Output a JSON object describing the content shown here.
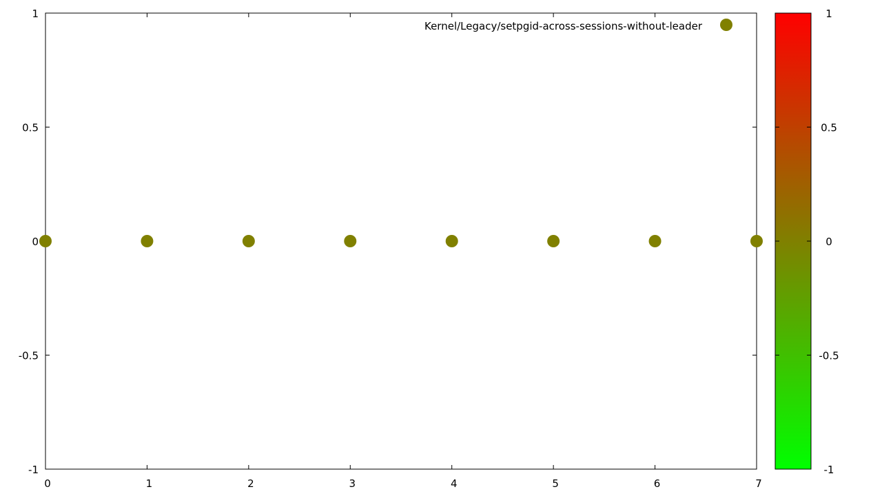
{
  "chart_data": {
    "type": "scatter",
    "title": "",
    "xlabel": "",
    "ylabel": "",
    "xlim": [
      0,
      7
    ],
    "ylim": [
      -1,
      1
    ],
    "x_ticks": [
      "0",
      "1",
      "2",
      "3",
      "4",
      "5",
      "6",
      "7"
    ],
    "y_ticks": [
      "1",
      "0.5",
      "0",
      "-0.5",
      "-1"
    ],
    "grid": false,
    "legend_position": "top-right",
    "series": [
      {
        "name": "Kernel/Legacy/setpgid-across-sessions-without-leader",
        "color": "#808000",
        "x": [
          0,
          1,
          2,
          3,
          4,
          5,
          6,
          7
        ],
        "y": [
          0,
          0,
          0,
          0,
          0,
          0,
          0,
          0
        ]
      }
    ],
    "colorbar": {
      "range": [
        -1,
        1
      ],
      "ticks": [
        "1",
        "0.5",
        "0",
        "-0.5",
        "-1"
      ],
      "colors": {
        "min": "#00ff00",
        "mid": "#808000",
        "max": "#ff0000"
      }
    }
  }
}
